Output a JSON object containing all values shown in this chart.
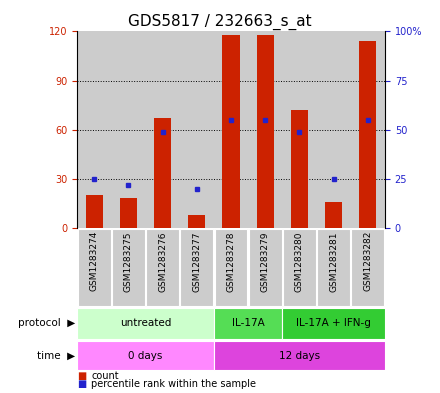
{
  "title": "GDS5817 / 232663_s_at",
  "samples": [
    "GSM1283274",
    "GSM1283275",
    "GSM1283276",
    "GSM1283277",
    "GSM1283278",
    "GSM1283279",
    "GSM1283280",
    "GSM1283281",
    "GSM1283282"
  ],
  "counts": [
    20,
    18,
    67,
    8,
    118,
    118,
    72,
    16,
    114
  ],
  "percentiles": [
    25,
    22,
    49,
    20,
    55,
    55,
    49,
    25,
    55
  ],
  "ylim_left": [
    0,
    120
  ],
  "ylim_right": [
    0,
    100
  ],
  "yticks_left": [
    0,
    30,
    60,
    90,
    120
  ],
  "yticks_right": [
    0,
    25,
    50,
    75,
    100
  ],
  "yticklabels_right": [
    "0",
    "25",
    "50",
    "75",
    "100%"
  ],
  "bar_color": "#cc2200",
  "dot_color": "#2222cc",
  "proto_items": [
    {
      "label": "untreated",
      "start": 0,
      "end": 3,
      "color": "#ccffcc"
    },
    {
      "label": "IL-17A",
      "start": 4,
      "end": 5,
      "color": "#55dd55"
    },
    {
      "label": "IL-17A + IFN-g",
      "start": 6,
      "end": 8,
      "color": "#33cc33"
    }
  ],
  "time_items": [
    {
      "label": "0 days",
      "start": 0,
      "end": 3,
      "color": "#ff88ff"
    },
    {
      "label": "12 days",
      "start": 4,
      "end": 8,
      "color": "#dd44dd"
    }
  ],
  "sample_bg_color": "#cccccc",
  "title_fontsize": 11,
  "tick_fontsize": 7,
  "sample_fontsize": 6.5,
  "row_fontsize": 7.5,
  "legend_fontsize": 7
}
